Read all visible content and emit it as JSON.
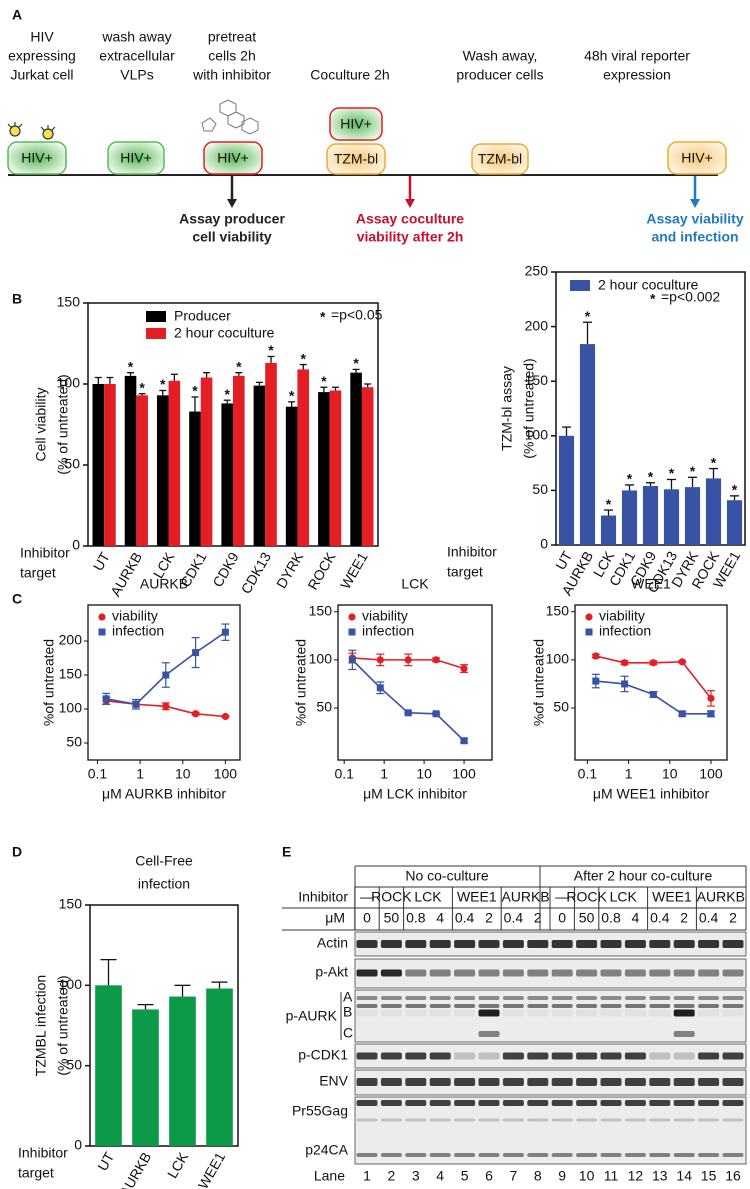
{
  "panel_labels": [
    "A",
    "B",
    "C",
    "D",
    "E"
  ],
  "diagram": {
    "steps": [
      [
        "HIV",
        "expressing",
        "Jurkat cell"
      ],
      [
        "wash away",
        "extracellular",
        "VLPs"
      ],
      [
        "pretreat",
        "cells 2h",
        "with inhibitor"
      ],
      [
        "Coculture 2h"
      ],
      [
        "Wash away,",
        "producer cells"
      ],
      [
        "48h viral reporter",
        "expression"
      ]
    ],
    "boxes": [
      "HIV+",
      "HIV+",
      "HIV+",
      "HIV+",
      "TZM-bl",
      "TZM-bl",
      "HIV+"
    ],
    "assays": [
      [
        "Assay producer",
        "cell viability"
      ],
      [
        "Assay coculture",
        "viability after 2h"
      ],
      [
        "Assay viability",
        "and infection"
      ]
    ]
  },
  "chart_data": [
    {
      "type": "bar",
      "ylabel": [
        "Cell viability",
        "(% of untreated)"
      ],
      "xlabel": [
        "Inhibitor",
        "target"
      ],
      "categories": [
        "UT",
        "AURKB",
        "LCK",
        "CDK1",
        "CDK9",
        "CDK13",
        "DYRK",
        "ROCK",
        "WEE1"
      ],
      "series": [
        {
          "name": "Producer",
          "color": "#000000",
          "values": [
            100,
            105,
            93,
            83,
            88,
            99,
            86,
            95,
            107
          ],
          "errors": [
            4,
            2,
            3,
            9,
            2,
            2,
            3,
            3,
            2
          ],
          "significant": [
            false,
            true,
            true,
            true,
            true,
            false,
            true,
            true,
            true
          ]
        },
        {
          "name": "2 hour coculture",
          "color": "#e31e24",
          "values": [
            100,
            93,
            102,
            104,
            105,
            113,
            109,
            96,
            98
          ],
          "errors": [
            4,
            1,
            4,
            3,
            2,
            4,
            3,
            2,
            2
          ],
          "significant": [
            false,
            true,
            false,
            false,
            true,
            true,
            true,
            false,
            false
          ]
        }
      ],
      "ylim": [
        0,
        150
      ],
      "yticks": [
        0,
        50,
        100,
        150
      ],
      "legend": "upper left",
      "significance_marker": "*",
      "annotation": "=p<0.05"
    },
    {
      "type": "bar",
      "ylabel": [
        "TZM-bl assay",
        "(% of untreated)"
      ],
      "xlabel": [
        "Inhibitor",
        "target"
      ],
      "categories": [
        "UT",
        "AURKB",
        "LCK",
        "CDK1",
        "CDK9",
        "CDK13",
        "DYRK",
        "ROCK",
        "WEE1"
      ],
      "series": [
        {
          "name": "2 hour coculture",
          "color": "#3953a4",
          "values": [
            100,
            184,
            27,
            50,
            54,
            51,
            53,
            61,
            41
          ],
          "errors": [
            8,
            20,
            5,
            5,
            3,
            9,
            9,
            9,
            4
          ],
          "significant": [
            false,
            true,
            true,
            true,
            true,
            true,
            true,
            true,
            true
          ]
        }
      ],
      "ylim": [
        0,
        250
      ],
      "yticks": [
        0,
        50,
        100,
        150,
        200,
        250
      ],
      "legend": "upper left",
      "significance_marker": "*",
      "annotation": "=p<0.002"
    },
    {
      "type": "line",
      "title": "AURKB",
      "ylabel": "%of untreated",
      "xlabel": "μM AURKB inhibitor",
      "log_x": true,
      "x": [
        0.16,
        0.8,
        4,
        20,
        100
      ],
      "series": [
        {
          "name": "viability",
          "color": "#e31e24",
          "marker": "circle",
          "values": [
            112,
            107,
            104,
            93,
            89
          ],
          "errors": [
            5,
            4,
            5,
            2,
            1
          ]
        },
        {
          "name": "infection",
          "color": "#3953a4",
          "marker": "square",
          "values": [
            115,
            107,
            150,
            183,
            213
          ],
          "errors": [
            8,
            7,
            18,
            22,
            12
          ]
        }
      ],
      "xlim": [
        0.06,
        220
      ],
      "xticks": [
        0.1,
        1,
        10,
        100
      ],
      "ylim": [
        25,
        253
      ],
      "yticks": [
        50,
        100,
        150,
        200
      ],
      "legend": "upper left"
    },
    {
      "type": "line",
      "title": "LCK",
      "ylabel": "%of untreated",
      "xlabel": "μM LCK inhibitor",
      "log_x": true,
      "x": [
        0.16,
        0.8,
        4,
        20,
        100
      ],
      "series": [
        {
          "name": "viability",
          "color": "#e31e24",
          "marker": "circle",
          "values": [
            102,
            100,
            100,
            100,
            91
          ],
          "errors": [
            5,
            6,
            6,
            2,
            4
          ]
        },
        {
          "name": "infection",
          "color": "#3953a4",
          "marker": "square",
          "values": [
            100,
            71,
            45,
            44,
            16
          ],
          "errors": [
            10,
            6,
            1,
            1,
            2
          ]
        }
      ],
      "xlim": [
        0.07,
        500
      ],
      "xticks": [
        0.1,
        1,
        10,
        100
      ],
      "ylim": [
        -4,
        157
      ],
      "yticks": [
        50,
        100,
        150
      ],
      "legend": "upper left"
    },
    {
      "type": "line",
      "title": "WEE1",
      "ylabel": "%of untreated",
      "xlabel": "μM WEE1 inhibitor",
      "log_x": true,
      "x": [
        0.16,
        0.8,
        4,
        20,
        100
      ],
      "series": [
        {
          "name": "viability",
          "color": "#e31e24",
          "marker": "circle",
          "values": [
            104,
            97,
            97,
            98,
            60
          ],
          "errors": [
            2,
            2,
            2,
            1,
            8
          ]
        },
        {
          "name": "infection",
          "color": "#3953a4",
          "marker": "square",
          "values": [
            78,
            75,
            64,
            44,
            44
          ],
          "errors": [
            7,
            8,
            3,
            2,
            3
          ]
        }
      ],
      "xlim": [
        0.05,
        245
      ],
      "xticks": [
        0.1,
        1,
        10,
        100
      ],
      "ylim": [
        -4,
        157
      ],
      "yticks": [
        50,
        100,
        150
      ],
      "legend": "upper left"
    },
    {
      "type": "bar",
      "title": [
        "Cell-Free",
        "infection"
      ],
      "ylabel": [
        "TZMBL infection",
        "(% of untreated)"
      ],
      "xlabel": [
        "Inhibitor",
        "target"
      ],
      "categories": [
        "UT",
        "AURKB",
        "LCK",
        "WEE1"
      ],
      "series": [
        {
          "color": "#0c9a48",
          "values": [
            100,
            85,
            93,
            98
          ],
          "errors": [
            16,
            3,
            7,
            4
          ]
        }
      ],
      "ylim": [
        0,
        150
      ],
      "yticks": [
        0,
        50,
        100,
        150
      ]
    }
  ],
  "blot": {
    "header": [
      "No co-culture",
      "After 2 hour co-culture"
    ],
    "inhibitor_label": "Inhibitor",
    "inhibitors": [
      "—",
      "ROCK",
      "LCK",
      "WEE1",
      "AURKB",
      "—",
      "ROCK",
      "LCK",
      "WEE1",
      "AURKB"
    ],
    "dose_label": "μM",
    "doses": [
      0,
      50,
      0.8,
      4,
      0.4,
      2,
      0.4,
      2,
      0,
      50,
      0.8,
      4,
      0.4,
      2,
      0.4,
      2
    ],
    "rows": [
      "Actin",
      "p-Akt",
      "p-AURK",
      "p-CDK1",
      "ENV",
      "Pr55Gag",
      "p24CA"
    ],
    "aurk_bands": [
      "A",
      "B",
      "C"
    ],
    "lane_label": "Lane",
    "lanes": [
      1,
      2,
      3,
      4,
      5,
      6,
      7,
      8,
      9,
      10,
      11,
      12,
      13,
      14,
      15,
      16
    ]
  }
}
